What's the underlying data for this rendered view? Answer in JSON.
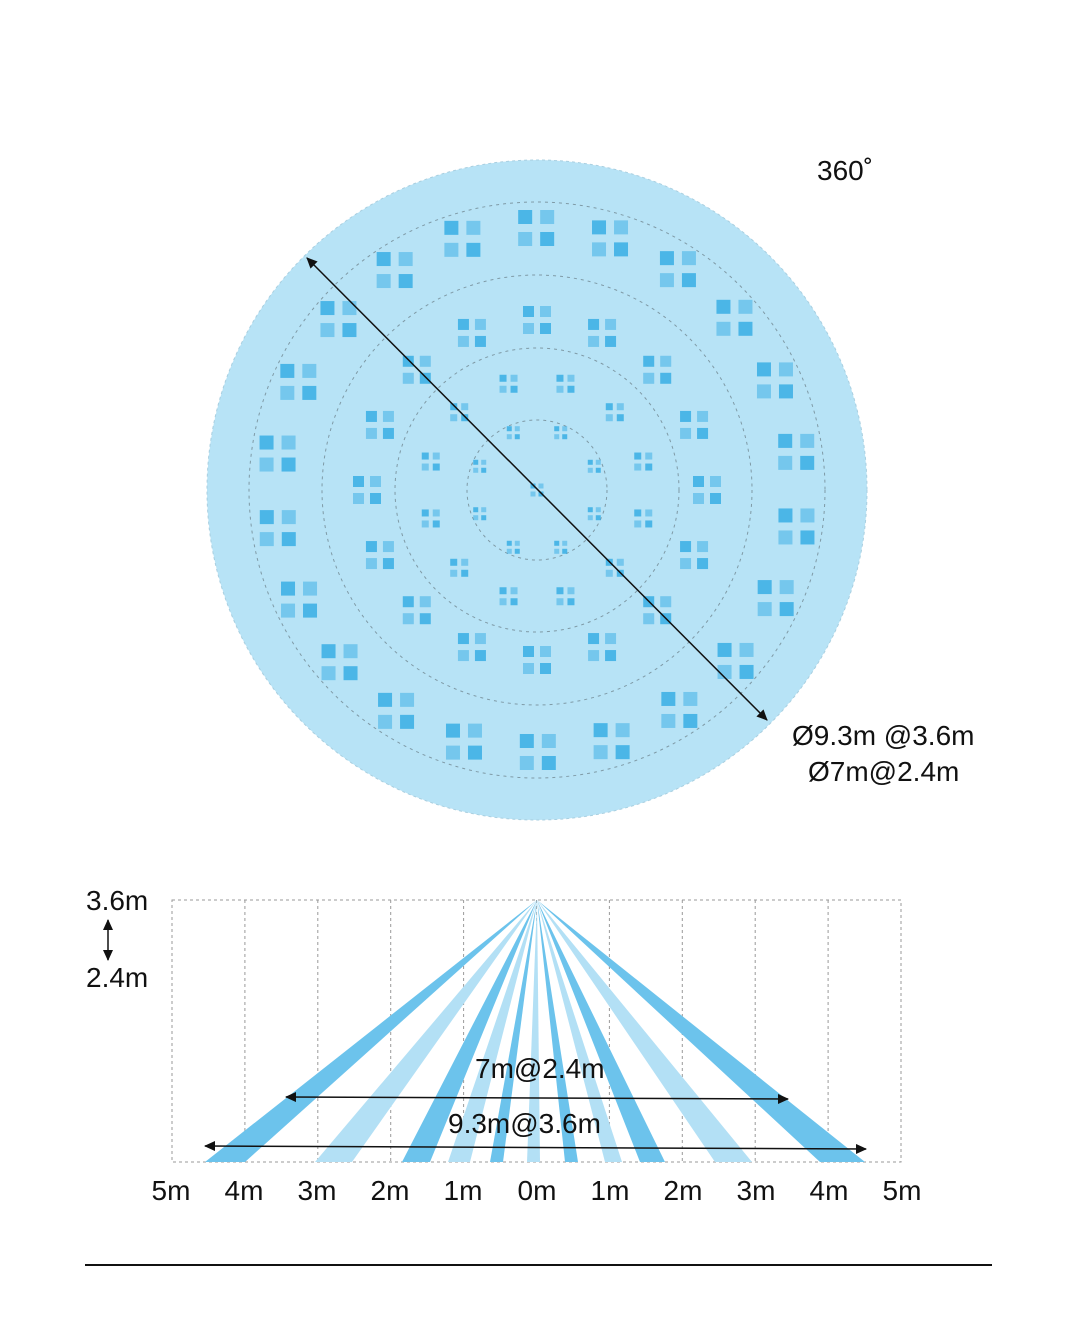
{
  "top_view": {
    "angle_label": "360˚",
    "diameter_label_1": "Ø9.3m @3.6m",
    "diameter_label_2": "Ø7m@2.4m",
    "fill_color": "#b7e3f6",
    "pad_color": "#3fb0e6"
  },
  "side_view": {
    "height_top": "3.6m",
    "height_bottom": "2.4m",
    "width_label_1": "7m@2.4m",
    "width_label_2": "9.3m@3.6m",
    "x_ticks": [
      "5m",
      "4m",
      "3m",
      "2m",
      "1m",
      "0m",
      "1m",
      "2m",
      "3m",
      "4m",
      "5m"
    ],
    "beam_dark": "#6cc3ec",
    "beam_light": "#b3e0f5"
  }
}
